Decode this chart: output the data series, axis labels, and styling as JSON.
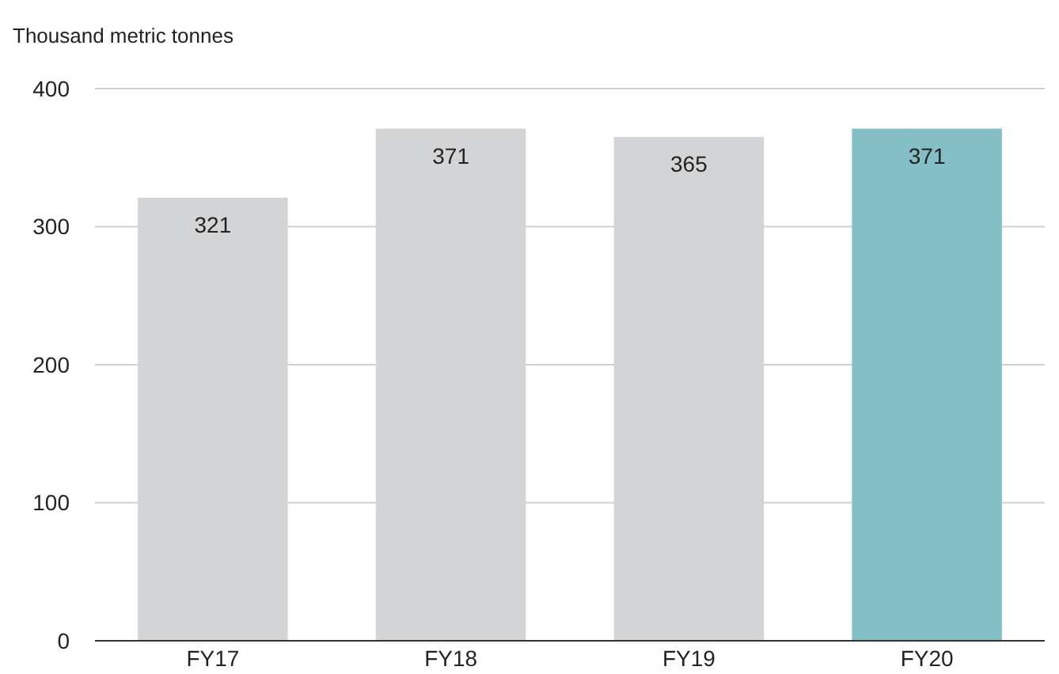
{
  "chart_data": {
    "type": "bar",
    "ylabel": "Thousand metric tonnes",
    "categories": [
      "FY17",
      "FY18",
      "FY19",
      "FY20"
    ],
    "values": [
      321,
      371,
      365,
      371
    ],
    "colors": [
      "#d3d4d6",
      "#d3d4d6",
      "#d3d4d6",
      "#84bfc6"
    ],
    "ylim": [
      0,
      400
    ],
    "yticks": [
      0,
      100,
      200,
      300,
      400
    ],
    "grid": "y",
    "data_labels": true
  }
}
